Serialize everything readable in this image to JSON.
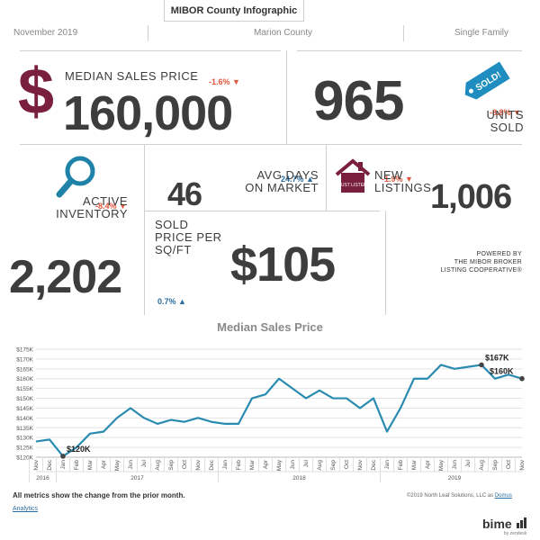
{
  "header": {
    "title": "MIBOR County Infographic",
    "month": "November 2019",
    "county": "Marion County",
    "property_type": "Single Family"
  },
  "metrics": {
    "median_sales_price": {
      "label": "MEDIAN SALES PRICE",
      "value": "160,000",
      "change": "-1.6% ▼",
      "currency_symbol": "$"
    },
    "units_sold": {
      "value": "965",
      "label_line1": "UNITS",
      "label_line2": "SOLD",
      "change": "-8.8% ▼",
      "badge": "SOLD!"
    },
    "active_inventory": {
      "label_line1": "ACTIVE",
      "label_line2": "INVENTORY",
      "change": "-8.4% ▼",
      "value": "2,202"
    },
    "avg_days": {
      "value": "46",
      "label_line1": "AVG DAYS",
      "label_line2": "ON MARKET",
      "change": "24.7% ▲"
    },
    "new_listings": {
      "label_line1": "NEW",
      "label_line2": "LISTINGS",
      "change": "-1.9% ▼",
      "value": "1,006",
      "house_sign": "JUST LISTED"
    },
    "price_per_sqft": {
      "label_line1": "SOLD",
      "label_line2": "PRICE PER",
      "label_line3": "SQ/FT",
      "value": "$105",
      "change": "0.7% ▲"
    }
  },
  "powered_by": {
    "line1": "POWERED BY",
    "line2": "THE MIBOR BROKER",
    "line3": "LISTING COOPERATIVE®"
  },
  "chart_data": {
    "type": "line",
    "title": "Median Sales Price",
    "y_ticks": [
      "$120K",
      "$125K",
      "$130K",
      "$135K",
      "$140K",
      "$145K",
      "$150K",
      "$155K",
      "$160K",
      "$165K",
      "$170K",
      "$175K"
    ],
    "ylim": [
      120,
      175
    ],
    "x": [
      "Nov",
      "Dec",
      "Jan",
      "Feb",
      "Mar",
      "Apr",
      "May",
      "Jun",
      "Jul",
      "Aug",
      "Sep",
      "Oct",
      "Nov",
      "Dec",
      "Jan",
      "Feb",
      "Mar",
      "Apr",
      "May",
      "Jun",
      "Jul",
      "Aug",
      "Sep",
      "Oct",
      "Nov",
      "Dec",
      "Jan",
      "Feb",
      "Mar",
      "Apr",
      "May",
      "Jun",
      "Jul",
      "Aug",
      "Sep",
      "Oct",
      "Nov"
    ],
    "years": [
      {
        "label": "2016",
        "start": 0,
        "end": 1
      },
      {
        "label": "2017",
        "start": 2,
        "end": 13
      },
      {
        "label": "2018",
        "start": 14,
        "end": 25
      },
      {
        "label": "2019",
        "start": 26,
        "end": 36
      }
    ],
    "values": [
      128,
      129,
      120.5,
      125,
      132,
      133,
      140,
      145,
      140,
      137,
      139,
      138,
      140,
      138,
      137,
      137,
      150,
      152,
      160,
      155,
      150,
      154,
      150,
      150,
      145,
      150,
      133,
      145,
      160,
      160,
      167,
      165,
      166,
      167,
      160,
      162,
      160
    ],
    "annotations": [
      {
        "index": 2,
        "text": "$120K"
      },
      {
        "index": 33,
        "text": "$167K"
      },
      {
        "index": 36,
        "text": "$160K"
      }
    ],
    "line_color": "#2a8bb0",
    "grid": true
  },
  "footer": {
    "note": "All metrics show the change from the prior month.",
    "copyright": "©2019 North Leaf Solutions, LLC as",
    "copyright_link": "Domus",
    "analytics_link": "Analytics",
    "brand": "bime",
    "brand_sub": "by zendesk"
  },
  "colors": {
    "accent_maroon": "#7a1f3d",
    "accent_blue": "#1f82a8",
    "badge_blue": "#1f8dbf",
    "text_dark": "#3d3d3d"
  }
}
